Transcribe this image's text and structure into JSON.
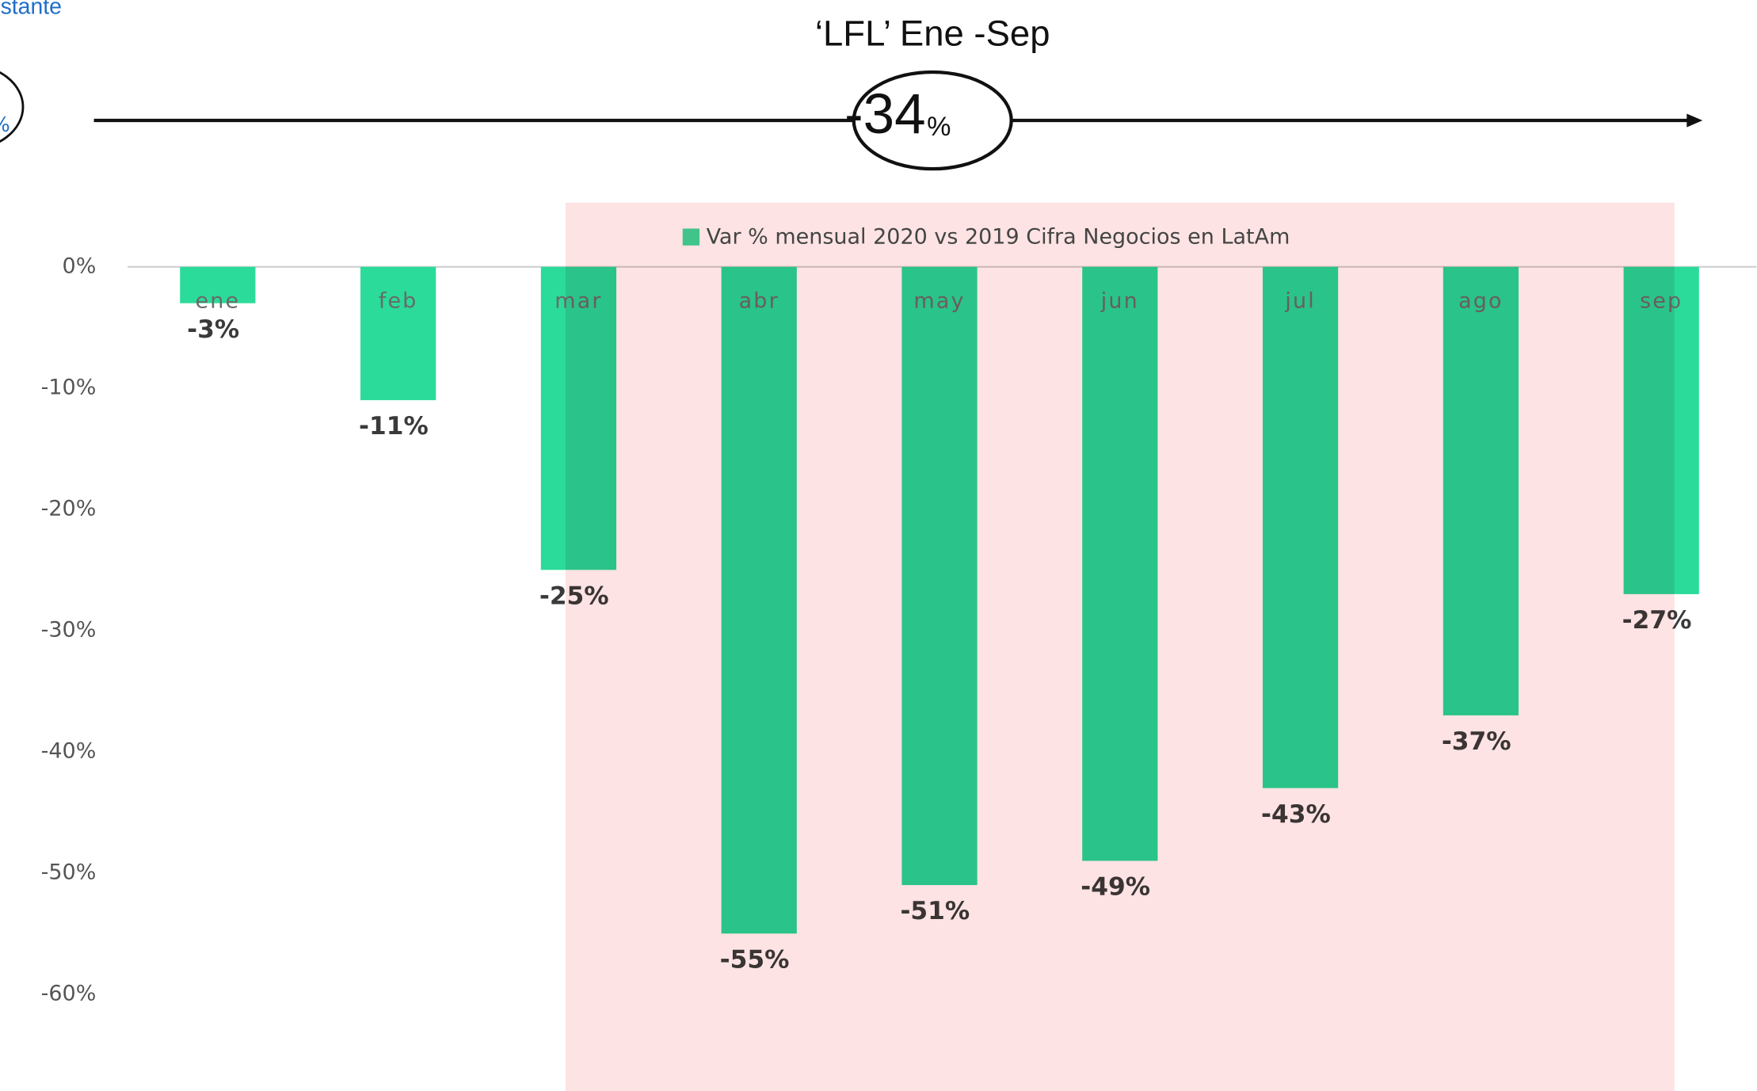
{
  "chart_data": {
    "type": "bar",
    "title": "‘LFL’ Ene -Sep",
    "headline": {
      "value": -34,
      "label": "-34",
      "unit": "%"
    },
    "left_annotation": {
      "text": "stante",
      "unit": "%"
    },
    "legend_label": "Var %  mensual  2020 vs 2019 Cifra Negocios en LatAm",
    "categories": [
      "ene",
      "feb",
      "mar",
      "abr",
      "may",
      "jun",
      "jul",
      "ago",
      "sep"
    ],
    "values": [
      -3,
      -11,
      -25,
      -55,
      -51,
      -49,
      -43,
      -37,
      -27
    ],
    "value_labels": [
      "-3%",
      "-11%",
      "-25%",
      "-55%",
      "-51%",
      "-49%",
      "-43%",
      "-37%",
      "-27%"
    ],
    "color": "#2adb9a",
    "ylim": [
      -60,
      0
    ],
    "yticks": [
      {
        "value": 0,
        "label": "0%"
      },
      {
        "value": -10,
        "label": "-10%"
      },
      {
        "value": -20,
        "label": "-20%"
      },
      {
        "value": -30,
        "label": "-30%"
      },
      {
        "value": -40,
        "label": "-40%"
      },
      {
        "value": -50,
        "label": "-50%"
      },
      {
        "value": -60,
        "label": "-60%"
      }
    ]
  }
}
